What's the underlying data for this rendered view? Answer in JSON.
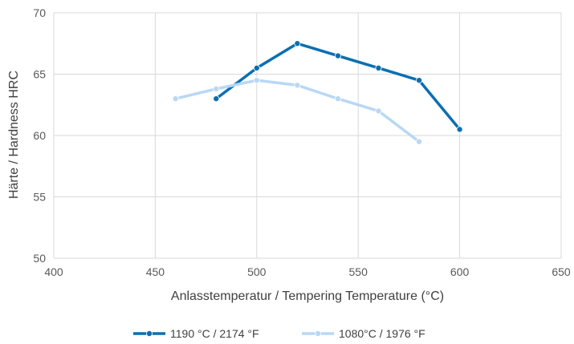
{
  "chart_data": {
    "type": "line",
    "xlabel": "Anlasstemperatur / Tempering Temperature (°C)",
    "ylabel": "Härte / Hardness HRC",
    "xlim": [
      400,
      650
    ],
    "ylim": [
      50,
      70
    ],
    "xticks": [
      "400",
      "450",
      "500",
      "550",
      "600",
      "650"
    ],
    "yticks": [
      "50",
      "55",
      "60",
      "65",
      "70"
    ],
    "grid": true,
    "legend_position": "bottom",
    "series": [
      {
        "name": "1190 °C / 2174 °F",
        "color": "#0a6fb3",
        "x": [
          480,
          500,
          520,
          540,
          560,
          580,
          600
        ],
        "y": [
          63.0,
          65.5,
          67.5,
          66.5,
          65.5,
          64.5,
          60.5
        ]
      },
      {
        "name": "1080°C / 1976 °F",
        "color": "#b8d8f5",
        "x": [
          460,
          480,
          500,
          520,
          540,
          560,
          580
        ],
        "y": [
          63.0,
          63.8,
          64.5,
          64.1,
          63.0,
          62.0,
          59.5
        ]
      }
    ]
  }
}
